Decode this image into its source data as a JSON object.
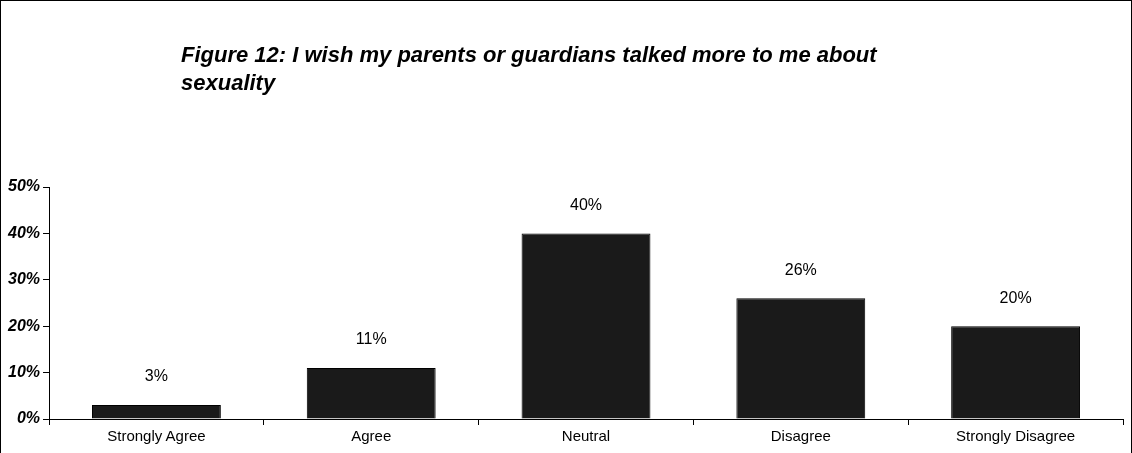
{
  "chart_data": {
    "type": "bar",
    "title": "Figure 12: I wish my parents or guardians talked more to me about sexuality",
    "categories": [
      "Strongly Agree",
      "Agree",
      "Neutral",
      "Disagree",
      "Strongly Disagree"
    ],
    "values": [
      3,
      11,
      40,
      26,
      20
    ],
    "value_labels": [
      "3%",
      "11%",
      "40%",
      "26%",
      "20%"
    ],
    "color": "#1a1a1a",
    "ylim": [
      0,
      50
    ],
    "yticks": [
      {
        "value": 0,
        "label": "0%"
      },
      {
        "value": 10,
        "label": "10%"
      },
      {
        "value": 20,
        "label": "20%"
      },
      {
        "value": 30,
        "label": "30%"
      },
      {
        "value": 40,
        "label": "40%"
      },
      {
        "value": 50,
        "label": "50%"
      }
    ],
    "grid": false,
    "legend": false
  }
}
